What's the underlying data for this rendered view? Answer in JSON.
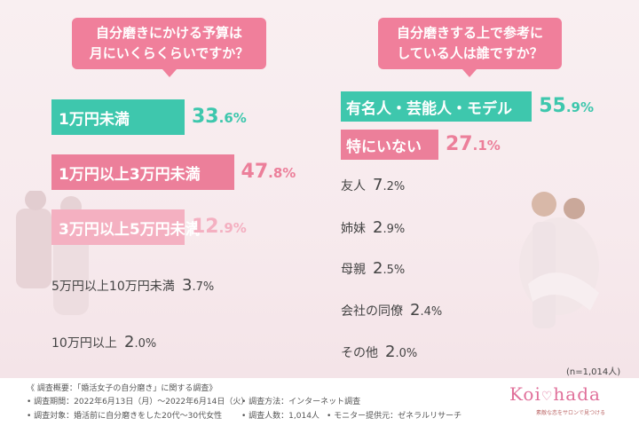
{
  "left": {
    "question_line1": "自分磨きにかける予算は",
    "question_line2": "月にいくらくらいですか？"
  },
  "right": {
    "question_line1": "自分磨きする上で参考に",
    "question_line2": "している人は誰ですか？"
  },
  "sample_note": "(n=1,014人)",
  "chart_data": [
    {
      "type": "bar",
      "orientation": "horizontal",
      "categories": [
        "1万円未満",
        "1万円以上3万円未満",
        "3万円以上5万円未満",
        "5万円以上10万円未満",
        "10万円以上"
      ],
      "values": [
        33.6,
        47.8,
        12.9,
        3.7,
        2.0
      ],
      "value_labels": [
        {
          "int": "33",
          "dec": ".6%"
        },
        {
          "int": "47",
          "dec": ".8%"
        },
        {
          "int": "12",
          "dec": ".9%"
        },
        {
          "int": "3",
          "dec": ".7%"
        },
        {
          "int": "2",
          "dec": ".0%"
        }
      ],
      "unit": "%",
      "colors": [
        "#3ec7ad",
        "#ec7f9a",
        "#f4b0c1",
        null,
        null
      ]
    },
    {
      "type": "bar",
      "orientation": "horizontal",
      "categories": [
        "有名人・芸能人・モデル",
        "特にいない",
        "友人",
        "姉妹",
        "母親",
        "会社の同僚",
        "その他"
      ],
      "values": [
        55.9,
        27.1,
        7.2,
        2.9,
        2.5,
        2.4,
        2.0
      ],
      "value_labels": [
        {
          "int": "55",
          "dec": ".9%"
        },
        {
          "int": "27",
          "dec": ".1%"
        },
        {
          "int": "7",
          "dec": ".2%"
        },
        {
          "int": "2",
          "dec": ".9%"
        },
        {
          "int": "2",
          "dec": ".5%"
        },
        {
          "int": "2",
          "dec": ".4%"
        },
        {
          "int": "2",
          "dec": ".0%"
        }
      ],
      "unit": "%",
      "colors": [
        "#3ec7ad",
        "#ec7f9a",
        null,
        null,
        null,
        null,
        null
      ]
    }
  ],
  "footer": {
    "title": "《 調査概要：「婚活女子の自分磨き」に関する調査》",
    "period": "• 調査期間：2022年6月13日（月）～2022年6月14日（火）",
    "method": "• 調査方法：インターネット調査",
    "target": "• 調査対象：婚活前に自分磨きをした20代～30代女性",
    "count": "• 調査人数：1,014人",
    "provider": "• モニター提供元：ゼネラルリサーチ"
  },
  "brand": {
    "logo_left": "Koi",
    "logo_right": "hada",
    "tagline": "素敵な恋をサロンで見つける"
  }
}
